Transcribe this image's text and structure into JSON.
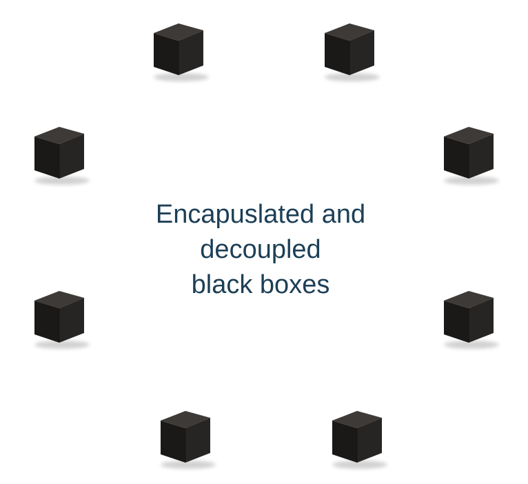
{
  "caption": {
    "lines": [
      "Encapuslated and",
      "decoupled",
      "black boxes"
    ],
    "color": "#1c3f56"
  },
  "cubes": [
    {
      "name": "black-box-cube-1",
      "icon": "cube-icon"
    },
    {
      "name": "black-box-cube-2",
      "icon": "cube-icon"
    },
    {
      "name": "black-box-cube-3",
      "icon": "cube-icon"
    },
    {
      "name": "black-box-cube-4",
      "icon": "cube-icon"
    },
    {
      "name": "black-box-cube-5",
      "icon": "cube-icon"
    },
    {
      "name": "black-box-cube-6",
      "icon": "cube-icon"
    },
    {
      "name": "black-box-cube-7",
      "icon": "cube-icon"
    },
    {
      "name": "black-box-cube-8",
      "icon": "cube-icon"
    }
  ],
  "colors": {
    "cube_top": "#3d3a37",
    "cube_left": "#1a1918",
    "cube_right": "#272523",
    "background": "#ffffff"
  }
}
